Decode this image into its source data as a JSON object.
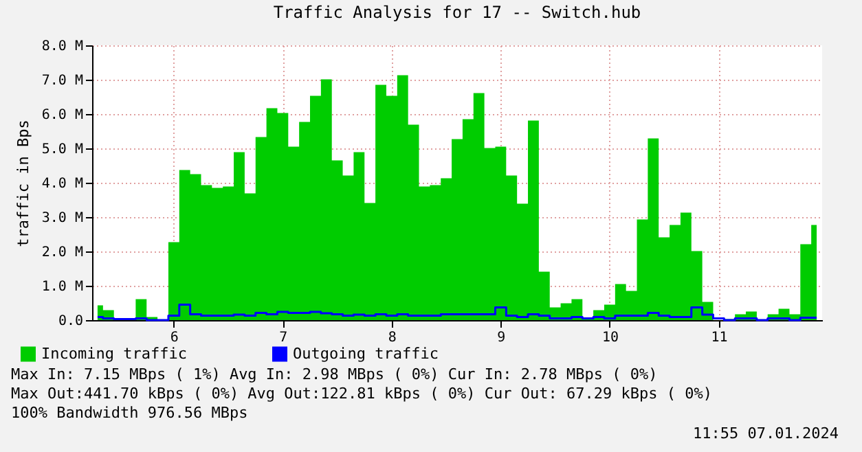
{
  "chart_data": {
    "type": "area",
    "title": "Traffic Analysis for 17 -- Switch.hub",
    "ylabel": "traffic in Bps",
    "x": [
      5.3,
      5.4,
      5.5,
      5.6,
      5.7,
      5.8,
      5.9,
      6.0,
      6.1,
      6.2,
      6.3,
      6.4,
      6.5,
      6.6,
      6.7,
      6.8,
      6.9,
      7.0,
      7.1,
      7.2,
      7.3,
      7.4,
      7.5,
      7.6,
      7.7,
      7.8,
      7.9,
      8.0,
      8.1,
      8.2,
      8.3,
      8.4,
      8.5,
      8.6,
      8.7,
      8.8,
      8.9,
      9.0,
      9.1,
      9.2,
      9.3,
      9.4,
      9.5,
      9.6,
      9.7,
      9.8,
      9.9,
      10.0,
      10.1,
      10.2,
      10.3,
      10.4,
      10.5,
      10.6,
      10.7,
      10.8,
      10.9,
      11.0,
      11.1,
      11.2,
      11.3,
      11.4,
      11.5,
      11.6,
      11.7,
      11.8,
      11.9
    ],
    "series": [
      {
        "name": "Incoming traffic",
        "color": "#00cc00",
        "values": [
          0.43,
          0.29,
          0.05,
          0.05,
          0.61,
          0.09,
          0,
          2.27,
          4.37,
          4.25,
          3.93,
          3.85,
          3.89,
          4.89,
          3.69,
          5.33,
          6.17,
          6.03,
          5.05,
          5.77,
          6.53,
          7.01,
          4.65,
          4.21,
          4.89,
          3.41,
          6.85,
          6.53,
          7.13,
          5.69,
          3.89,
          3.93,
          4.13,
          5.27,
          5.85,
          6.61,
          5.01,
          5.05,
          4.21,
          3.39,
          5.81,
          1.41,
          0.37,
          0.49,
          0.61,
          0.03,
          0.29,
          0.45,
          1.05,
          0.85,
          2.93,
          5.29,
          2.41,
          2.77,
          3.13,
          2.01,
          0.53,
          0,
          0.03,
          0.17,
          0.25,
          0,
          0.17,
          0.33,
          0.17,
          2.21,
          2.77
        ]
      },
      {
        "name": "Outgoing traffic",
        "type": "step",
        "color": "#0000ff",
        "values": [
          0.09,
          0.05,
          0.03,
          0.03,
          0.05,
          0,
          0,
          0.13,
          0.45,
          0.17,
          0.13,
          0.13,
          0.13,
          0.16,
          0.13,
          0.21,
          0.17,
          0.24,
          0.21,
          0.21,
          0.24,
          0.2,
          0.17,
          0.13,
          0.16,
          0.13,
          0.17,
          0.13,
          0.17,
          0.13,
          0.13,
          0.13,
          0.17,
          0.17,
          0.17,
          0.17,
          0.17,
          0.37,
          0.13,
          0.09,
          0.17,
          0.13,
          0.05,
          0.05,
          0.09,
          0.05,
          0.09,
          0.05,
          0.13,
          0.13,
          0.13,
          0.21,
          0.13,
          0.09,
          0.09,
          0.37,
          0.16,
          0.05,
          0,
          0.05,
          0.05,
          0,
          0.05,
          0.05,
          0,
          0.07,
          0.07
        ]
      }
    ],
    "xlim": [
      5.25,
      11.95
    ],
    "xticks": [
      6,
      7,
      8,
      9,
      10,
      11
    ],
    "ylim": [
      0,
      8
    ],
    "yticks": [
      {
        "value": 0,
        "label": "0.0"
      },
      {
        "value": 1,
        "label": "1.0 M"
      },
      {
        "value": 2,
        "label": "2.0 M"
      },
      {
        "value": 3,
        "label": "3.0 M"
      },
      {
        "value": 4,
        "label": "4.0 M"
      },
      {
        "value": 5,
        "label": "5.0 M"
      },
      {
        "value": 6,
        "label": "6.0 M"
      },
      {
        "value": 7,
        "label": "7.0 M"
      },
      {
        "value": 8,
        "label": "8.0 M"
      }
    ],
    "grid": true,
    "legend": "bottom left",
    "annotations": [
      "Max In:   7.15 MBps ( 1%)  Avg In:   2.98 MBps ( 0%)  Cur In:   2.78 MBps ( 0%)",
      "Max Out:441.70 kBps ( 0%)  Avg Out:122.81 kBps ( 0%)  Cur Out: 67.29 kBps ( 0%)",
      "100% Bandwidth 976.56 MBps",
      "11:55 07.01.2024"
    ]
  }
}
